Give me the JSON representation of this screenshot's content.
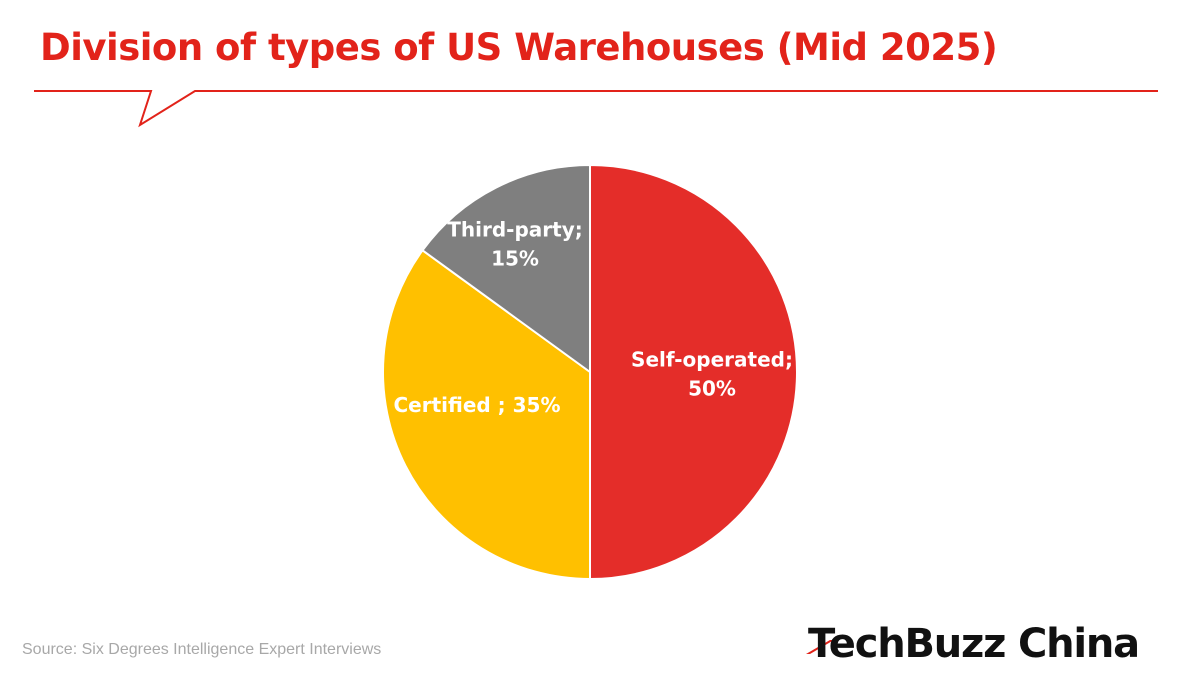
{
  "title": "Division of types of US Warehouses (Mid 2025)",
  "source": "Source: Six Degrees Intelligence Expert Interviews",
  "logo": "TechBuzz China",
  "colors": {
    "accent": "#e2231a",
    "self_operated": "#e42d29",
    "certified": "#ffc000",
    "third_party": "#7f7f7f",
    "label_text": "#ffffff"
  },
  "chart_data": {
    "type": "pie",
    "title": "Division of types of US Warehouses (Mid 2025)",
    "slices": [
      {
        "label": "Self-operated",
        "value": 50,
        "label_lines": [
          "Self-operated;",
          "50%"
        ],
        "color": "#e42d29"
      },
      {
        "label": "Certified",
        "value": 35,
        "label_lines": [
          "Certified ; 35%"
        ],
        "color": "#ffc000"
      },
      {
        "label": "Third-party",
        "value": 15,
        "label_lines": [
          "Third-party;",
          "15%"
        ],
        "color": "#7f7f7f"
      }
    ]
  }
}
